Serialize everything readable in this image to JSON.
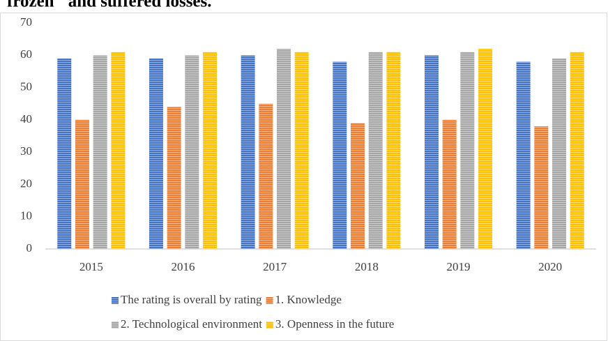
{
  "caption": "frozen\" and suffered losses.",
  "chart_data": {
    "type": "bar",
    "categories": [
      "2015",
      "2016",
      "2017",
      "2018",
      "2019",
      "2020"
    ],
    "series": [
      {
        "name": "The rating is overall by rating",
        "color": "#4472c4",
        "values": [
          59,
          59,
          60,
          58,
          60,
          58
        ]
      },
      {
        "name": "1. Knowledge",
        "color": "#ed7d31",
        "values": [
          40,
          44,
          45,
          39,
          40,
          38
        ]
      },
      {
        "name": "2. Technological environment",
        "color": "#a5a5a5",
        "values": [
          60,
          60,
          62,
          61,
          61,
          59
        ]
      },
      {
        "name": "3. Openness in the future",
        "color": "#ffc000",
        "values": [
          61,
          61,
          61,
          61,
          62,
          61
        ]
      }
    ],
    "ylim": [
      0,
      70
    ],
    "yticks": [
      0,
      10,
      20,
      30,
      40,
      50,
      60,
      70
    ],
    "grid": false,
    "legend": "bottom"
  }
}
